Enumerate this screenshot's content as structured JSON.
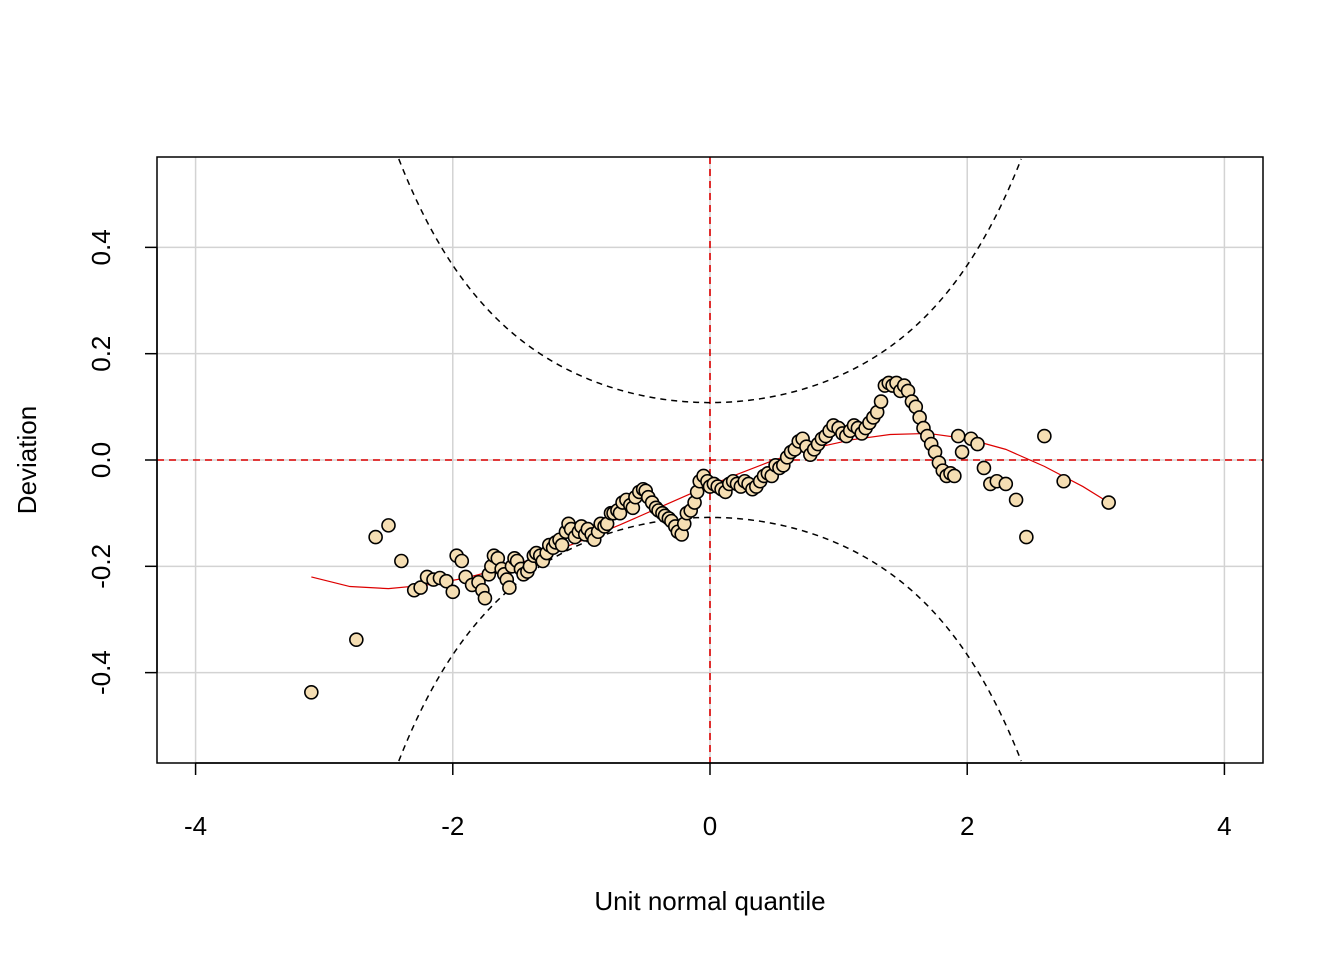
{
  "chart_data": {
    "type": "scatter",
    "title": "",
    "xlabel": "Unit normal quantile",
    "ylabel": "Deviation",
    "xlim": [
      -4.3,
      4.3
    ],
    "ylim": [
      -0.57,
      0.57
    ],
    "xticks": [
      -4,
      -2,
      0,
      2,
      4
    ],
    "xtick_labels": [
      "-4",
      "-2",
      "0",
      "2",
      "4"
    ],
    "yticks": [
      -0.4,
      -0.2,
      0.0,
      0.2,
      0.4
    ],
    "ytick_labels": [
      "-0.4",
      "-0.2",
      "0.0",
      "0.2",
      "0.4"
    ],
    "grid": true,
    "reference_lines": {
      "x": 0,
      "y": 0,
      "color": "#dd0000"
    },
    "confidence_band": {
      "color": "#000000",
      "half_width_at_0": 0.108
    },
    "fit_curve_color": "#dd0000",
    "point_fill": "#f5deb3",
    "point_stroke": "#000000",
    "points": [
      [
        -3.1,
        -0.437
      ],
      [
        -2.75,
        -0.338
      ],
      [
        -2.6,
        -0.145
      ],
      [
        -2.5,
        -0.123
      ],
      [
        -2.4,
        -0.19
      ],
      [
        -2.3,
        -0.245
      ],
      [
        -2.25,
        -0.24
      ],
      [
        -2.2,
        -0.22
      ],
      [
        -2.15,
        -0.225
      ],
      [
        -2.1,
        -0.222
      ],
      [
        -2.05,
        -0.228
      ],
      [
        -2.0,
        -0.248
      ],
      [
        -1.97,
        -0.18
      ],
      [
        -1.93,
        -0.19
      ],
      [
        -1.9,
        -0.22
      ],
      [
        -1.85,
        -0.235
      ],
      [
        -1.8,
        -0.23
      ],
      [
        -1.77,
        -0.245
      ],
      [
        -1.75,
        -0.26
      ],
      [
        -1.72,
        -0.215
      ],
      [
        -1.7,
        -0.2
      ],
      [
        -1.68,
        -0.18
      ],
      [
        -1.65,
        -0.185
      ],
      [
        -1.62,
        -0.205
      ],
      [
        -1.6,
        -0.215
      ],
      [
        -1.58,
        -0.225
      ],
      [
        -1.56,
        -0.24
      ],
      [
        -1.54,
        -0.2
      ],
      [
        -1.52,
        -0.185
      ],
      [
        -1.5,
        -0.19
      ],
      [
        -1.47,
        -0.205
      ],
      [
        -1.45,
        -0.215
      ],
      [
        -1.42,
        -0.21
      ],
      [
        -1.4,
        -0.2
      ],
      [
        -1.37,
        -0.18
      ],
      [
        -1.35,
        -0.175
      ],
      [
        -1.32,
        -0.18
      ],
      [
        -1.3,
        -0.19
      ],
      [
        -1.27,
        -0.175
      ],
      [
        -1.25,
        -0.16
      ],
      [
        -1.22,
        -0.165
      ],
      [
        -1.2,
        -0.155
      ],
      [
        -1.17,
        -0.15
      ],
      [
        -1.15,
        -0.16
      ],
      [
        -1.12,
        -0.135
      ],
      [
        -1.1,
        -0.12
      ],
      [
        -1.08,
        -0.13
      ],
      [
        -1.05,
        -0.145
      ],
      [
        -1.02,
        -0.135
      ],
      [
        -1.0,
        -0.125
      ],
      [
        -0.97,
        -0.14
      ],
      [
        -0.95,
        -0.13
      ],
      [
        -0.92,
        -0.14
      ],
      [
        -0.9,
        -0.15
      ],
      [
        -0.87,
        -0.135
      ],
      [
        -0.85,
        -0.12
      ],
      [
        -0.82,
        -0.125
      ],
      [
        -0.8,
        -0.12
      ],
      [
        -0.77,
        -0.1
      ],
      [
        -0.75,
        -0.1
      ],
      [
        -0.72,
        -0.095
      ],
      [
        -0.7,
        -0.1
      ],
      [
        -0.68,
        -0.08
      ],
      [
        -0.65,
        -0.075
      ],
      [
        -0.62,
        -0.085
      ],
      [
        -0.6,
        -0.09
      ],
      [
        -0.58,
        -0.07
      ],
      [
        -0.55,
        -0.06
      ],
      [
        -0.52,
        -0.055
      ],
      [
        -0.5,
        -0.058
      ],
      [
        -0.48,
        -0.07
      ],
      [
        -0.45,
        -0.08
      ],
      [
        -0.42,
        -0.09
      ],
      [
        -0.4,
        -0.095
      ],
      [
        -0.37,
        -0.1
      ],
      [
        -0.35,
        -0.105
      ],
      [
        -0.32,
        -0.11
      ],
      [
        -0.3,
        -0.115
      ],
      [
        -0.27,
        -0.125
      ],
      [
        -0.25,
        -0.135
      ],
      [
        -0.22,
        -0.14
      ],
      [
        -0.2,
        -0.12
      ],
      [
        -0.18,
        -0.1
      ],
      [
        -0.15,
        -0.095
      ],
      [
        -0.12,
        -0.08
      ],
      [
        -0.1,
        -0.06
      ],
      [
        -0.08,
        -0.04
      ],
      [
        -0.05,
        -0.03
      ],
      [
        -0.02,
        -0.04
      ],
      [
        0.0,
        -0.05
      ],
      [
        0.03,
        -0.045
      ],
      [
        0.06,
        -0.05
      ],
      [
        0.09,
        -0.055
      ],
      [
        0.12,
        -0.06
      ],
      [
        0.15,
        -0.045
      ],
      [
        0.18,
        -0.04
      ],
      [
        0.21,
        -0.045
      ],
      [
        0.24,
        -0.05
      ],
      [
        0.27,
        -0.04
      ],
      [
        0.3,
        -0.045
      ],
      [
        0.33,
        -0.055
      ],
      [
        0.36,
        -0.05
      ],
      [
        0.39,
        -0.04
      ],
      [
        0.42,
        -0.03
      ],
      [
        0.45,
        -0.025
      ],
      [
        0.48,
        -0.03
      ],
      [
        0.51,
        -0.01
      ],
      [
        0.54,
        -0.015
      ],
      [
        0.57,
        -0.01
      ],
      [
        0.6,
        0.005
      ],
      [
        0.63,
        0.015
      ],
      [
        0.66,
        0.02
      ],
      [
        0.69,
        0.035
      ],
      [
        0.72,
        0.04
      ],
      [
        0.75,
        0.025
      ],
      [
        0.78,
        0.01
      ],
      [
        0.81,
        0.02
      ],
      [
        0.84,
        0.03
      ],
      [
        0.87,
        0.04
      ],
      [
        0.9,
        0.045
      ],
      [
        0.93,
        0.055
      ],
      [
        0.96,
        0.065
      ],
      [
        1.0,
        0.06
      ],
      [
        1.03,
        0.05
      ],
      [
        1.06,
        0.045
      ],
      [
        1.09,
        0.055
      ],
      [
        1.12,
        0.065
      ],
      [
        1.15,
        0.06
      ],
      [
        1.18,
        0.05
      ],
      [
        1.21,
        0.06
      ],
      [
        1.24,
        0.07
      ],
      [
        1.27,
        0.08
      ],
      [
        1.3,
        0.09
      ],
      [
        1.33,
        0.11
      ],
      [
        1.36,
        0.14
      ],
      [
        1.39,
        0.145
      ],
      [
        1.42,
        0.14
      ],
      [
        1.45,
        0.145
      ],
      [
        1.48,
        0.13
      ],
      [
        1.51,
        0.14
      ],
      [
        1.54,
        0.13
      ],
      [
        1.57,
        0.11
      ],
      [
        1.6,
        0.1
      ],
      [
        1.63,
        0.08
      ],
      [
        1.66,
        0.06
      ],
      [
        1.69,
        0.045
      ],
      [
        1.72,
        0.03
      ],
      [
        1.75,
        0.015
      ],
      [
        1.78,
        -0.005
      ],
      [
        1.81,
        -0.02
      ],
      [
        1.84,
        -0.03
      ],
      [
        1.87,
        -0.025
      ],
      [
        1.9,
        -0.03
      ],
      [
        1.93,
        0.045
      ],
      [
        1.96,
        0.015
      ],
      [
        2.03,
        0.04
      ],
      [
        2.08,
        0.03
      ],
      [
        2.13,
        -0.015
      ],
      [
        2.18,
        -0.045
      ],
      [
        2.23,
        -0.04
      ],
      [
        2.3,
        -0.045
      ],
      [
        2.38,
        -0.075
      ],
      [
        2.46,
        -0.145
      ],
      [
        2.6,
        0.045
      ],
      [
        2.75,
        -0.04
      ],
      [
        3.1,
        -0.08
      ]
    ],
    "fit_curve": [
      [
        -3.1,
        -0.22
      ],
      [
        -2.8,
        -0.238
      ],
      [
        -2.5,
        -0.242
      ],
      [
        -2.2,
        -0.235
      ],
      [
        -1.9,
        -0.222
      ],
      [
        -1.6,
        -0.203
      ],
      [
        -1.3,
        -0.18
      ],
      [
        -1.0,
        -0.152
      ],
      [
        -0.7,
        -0.122
      ],
      [
        -0.4,
        -0.09
      ],
      [
        -0.1,
        -0.058
      ],
      [
        0.2,
        -0.028
      ],
      [
        0.5,
        0.0
      ],
      [
        0.8,
        0.022
      ],
      [
        1.1,
        0.038
      ],
      [
        1.4,
        0.048
      ],
      [
        1.7,
        0.05
      ],
      [
        2.0,
        0.04
      ],
      [
        2.3,
        0.02
      ],
      [
        2.6,
        -0.012
      ],
      [
        2.9,
        -0.05
      ],
      [
        3.1,
        -0.08
      ]
    ]
  }
}
